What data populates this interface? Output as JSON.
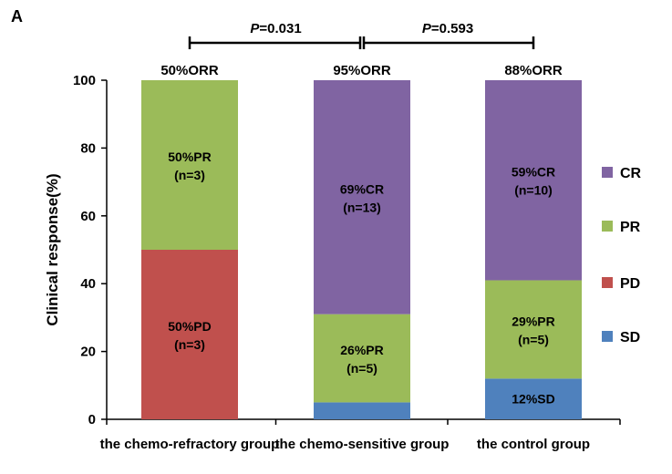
{
  "panel_letter": "A",
  "chart_data": {
    "type": "bar",
    "stacked": true,
    "categories": [
      "the chemo-refractory group",
      "the chemo-sensitive group",
      "the control group"
    ],
    "ylabel": "Clinical response(%)",
    "xlabel": "",
    "ylim": [
      0,
      100
    ],
    "yticks": [
      "0",
      "20",
      "40",
      "60",
      "80",
      "100"
    ],
    "grid": false,
    "legend_placement": "right",
    "series": [
      {
        "name": "SD",
        "color": "#4f81bd",
        "values": [
          0,
          5,
          12
        ],
        "labels": [
          null,
          null,
          {
            "line1": "12%SD"
          }
        ]
      },
      {
        "name": "PD",
        "color": "#c0504d",
        "values": [
          50,
          0,
          0
        ],
        "labels": [
          {
            "line1": "50%PD",
            "line2": "(n=3)"
          },
          null,
          null
        ]
      },
      {
        "name": "PR",
        "color": "#9bbb59",
        "values": [
          50,
          26,
          29
        ],
        "labels": [
          {
            "line1": "50%PR",
            "line2": "(n=3)"
          },
          {
            "line1": "26%PR",
            "line2": "(n=5)"
          },
          {
            "line1": "29%PR",
            "line2": "(n=5)"
          }
        ]
      },
      {
        "name": "CR",
        "color": "#8064a2",
        "values": [
          0,
          69,
          59
        ],
        "labels": [
          null,
          {
            "line1": "69%CR",
            "line2": "(n=13)"
          },
          {
            "line1": "59%CR",
            "line2": "(n=10)"
          }
        ]
      }
    ],
    "legend_order": [
      "CR",
      "PR",
      "PD",
      "SD"
    ],
    "top_labels": [
      "50%ORR",
      "95%ORR",
      "88%ORR"
    ],
    "comparisons": [
      {
        "from": 0,
        "to": 1,
        "p_symbol": "P",
        "p_value": "=0.031"
      },
      {
        "from": 1,
        "to": 2,
        "p_symbol": "P",
        "p_value": "=0.593"
      }
    ]
  }
}
